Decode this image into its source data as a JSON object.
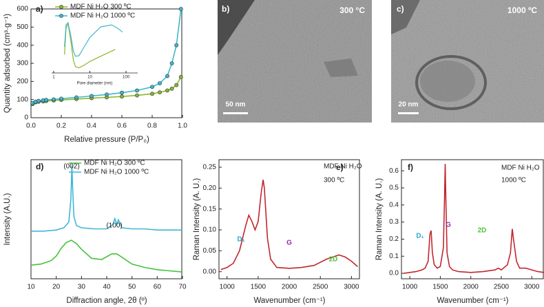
{
  "chart_data": [
    {
      "type": "line",
      "label": "a)",
      "x_label": "Relative pressure (P/P₀)",
      "y_label": "Quantity adsorbed (cm³·g⁻¹)",
      "markers": true,
      "xlim": [
        0,
        1
      ],
      "xticks": [
        {
          "value": 0,
          "label": "0.0"
        },
        0.2,
        0.4,
        0.6,
        0.8,
        {
          "value": 1,
          "label": "1.0"
        }
      ],
      "ylim": [
        0,
        600
      ],
      "yticks": [
        0,
        100,
        200,
        300,
        400,
        500,
        600
      ],
      "series": [
        {
          "name": "MDF Ni H₂O 300 ºC",
          "color": "#8db52a",
          "x": [
            0.01,
            0.03,
            0.05,
            0.08,
            0.1,
            0.15,
            0.2,
            0.3,
            0.4,
            0.5,
            0.6,
            0.7,
            0.8,
            0.85,
            0.9,
            0.93,
            0.96,
            0.99
          ],
          "values": [
            75,
            85,
            88,
            90,
            92,
            95,
            98,
            103,
            108,
            112,
            117,
            123,
            132,
            140,
            150,
            160,
            180,
            225
          ]
        },
        {
          "name": "MDF Ni H₂O 1000 ºC",
          "color": "#3fb8c9",
          "x": [
            0.01,
            0.03,
            0.05,
            0.08,
            0.1,
            0.15,
            0.2,
            0.3,
            0.4,
            0.5,
            0.6,
            0.7,
            0.8,
            0.85,
            0.9,
            0.93,
            0.96,
            0.99
          ],
          "values": [
            80,
            88,
            93,
            96,
            98,
            101,
            105,
            112,
            120,
            128,
            138,
            150,
            170,
            190,
            230,
            300,
            400,
            600
          ]
        }
      ]
    },
    {
      "type": "line",
      "x_label": "Pore diameter (nm)",
      "xscale": "log",
      "xlim": [
        0.88,
        210
      ],
      "xticks": [
        1,
        10,
        100
      ],
      "ylim": [
        0,
        1
      ],
      "series": [
        {
          "color": "#8db52a",
          "x": [
            2,
            2.2,
            2.5,
            3,
            3.5,
            4,
            5,
            7,
            10,
            20,
            50
          ],
          "values": [
            0.35,
            0.85,
            0.95,
            0.6,
            0.25,
            0.12,
            0.1,
            0.15,
            0.22,
            0.32,
            0.45
          ]
        },
        {
          "color": "#3fb8c9",
          "x": [
            2,
            2.2,
            2.5,
            3,
            3.5,
            4,
            5,
            7,
            10,
            20,
            40,
            60,
            80
          ],
          "values": [
            0.5,
            0.92,
            0.96,
            0.7,
            0.42,
            0.32,
            0.33,
            0.5,
            0.68,
            0.88,
            0.92,
            0.85,
            0.78
          ]
        }
      ]
    },
    {
      "type": "line",
      "label": "d)",
      "x_label": "Diffraction angle, 2θ (º)",
      "y_label": "Intensity (A.U.)",
      "xlim": [
        10,
        70
      ],
      "xticks": [
        10,
        20,
        30,
        40,
        50,
        60,
        70
      ],
      "ylim": [
        0,
        1.05
      ],
      "annotations": [
        "(002)",
        "(100)"
      ],
      "series": [
        {
          "name": "MDF Ni H₂O 300 ºC",
          "color": "#44c23a",
          "x": [
            10,
            14,
            18,
            20,
            22,
            24,
            26,
            28,
            30,
            34,
            38,
            42,
            44,
            46,
            50,
            55,
            60,
            65,
            70
          ],
          "values": [
            0.12,
            0.13,
            0.16,
            0.2,
            0.27,
            0.32,
            0.34,
            0.31,
            0.26,
            0.18,
            0.17,
            0.22,
            0.22,
            0.19,
            0.13,
            0.1,
            0.08,
            0.07,
            0.06
          ]
        },
        {
          "name": "MDF Ni H₂O 1000 ºC",
          "color": "#3fb6d6",
          "x": [
            10,
            15,
            20,
            23,
            25,
            25.8,
            26.2,
            26.5,
            27,
            28,
            30,
            35,
            40,
            42.5,
            43.2,
            44,
            44.6,
            46,
            50,
            55,
            60,
            65,
            70
          ],
          "values": [
            0.42,
            0.42,
            0.43,
            0.45,
            0.5,
            0.7,
            1.0,
            0.8,
            0.55,
            0.47,
            0.45,
            0.44,
            0.44,
            0.48,
            0.53,
            0.48,
            0.52,
            0.45,
            0.44,
            0.44,
            0.43,
            0.43,
            0.43
          ]
        }
      ]
    },
    {
      "type": "line",
      "label": "e)",
      "x_label": "Wavenumber (cm⁻¹)",
      "y_label": "Raman Intensity (A. U.)",
      "xlim": [
        870,
        3140
      ],
      "xticks": [
        1000,
        1500,
        2000,
        2500,
        3000
      ],
      "ylim": [
        -0.017,
        0.268
      ],
      "yticks": [
        {
          "value": 0,
          "label": "0.00"
        },
        {
          "value": 0.05,
          "label": "0.05"
        },
        {
          "value": 0.1,
          "label": "0.10"
        },
        {
          "value": 0.15,
          "label": "0.15"
        },
        {
          "value": 0.2,
          "label": "0.20"
        },
        {
          "value": 0.25,
          "label": "0.25"
        }
      ],
      "annotations": [
        "MDF Ni H₂O",
        "300 ºC",
        "D₁",
        "G",
        "2D"
      ],
      "series": [
        {
          "color": "#c0262d",
          "x": [
            900,
            1000,
            1100,
            1200,
            1300,
            1350,
            1400,
            1450,
            1500,
            1550,
            1580,
            1600,
            1650,
            1700,
            1800,
            2000,
            2200,
            2400,
            2600,
            2700,
            2800,
            2900,
            3000,
            3100
          ],
          "values": [
            0.005,
            0.01,
            0.02,
            0.05,
            0.11,
            0.135,
            0.12,
            0.1,
            0.12,
            0.19,
            0.22,
            0.2,
            0.08,
            0.03,
            0.01,
            0.008,
            0.01,
            0.015,
            0.03,
            0.035,
            0.04,
            0.035,
            0.025,
            0.012
          ]
        }
      ]
    },
    {
      "type": "line",
      "label": "f)",
      "x_label": "Wavenumber (cm⁻¹)",
      "y_label": "Raman Intensity (A. U.)",
      "xlim": [
        863,
        3200
      ],
      "xticks": [
        1000,
        1500,
        2000,
        2500,
        3000
      ],
      "ylim": [
        -0.032,
        0.665
      ],
      "yticks": [
        {
          "value": 0,
          "label": "0.0"
        },
        0.1,
        0.2,
        0.3,
        0.4,
        0.5,
        0.6
      ],
      "annotations": [
        "MDF Ni H₂O",
        "1000 ºC",
        "D₁",
        "G",
        "2D"
      ],
      "series": [
        {
          "color": "#c0262d",
          "x": [
            900,
            1000,
            1100,
            1200,
            1250,
            1300,
            1330,
            1350,
            1370,
            1400,
            1450,
            1500,
            1550,
            1570,
            1580,
            1590,
            1610,
            1650,
            1700,
            1800,
            2000,
            2200,
            2400,
            2450,
            2500,
            2600,
            2650,
            2680,
            2700,
            2750,
            2800,
            2900,
            3000,
            3100,
            3200
          ],
          "values": [
            0,
            0.005,
            0.01,
            0.02,
            0.03,
            0.07,
            0.23,
            0.25,
            0.12,
            0.05,
            0.03,
            0.04,
            0.15,
            0.45,
            0.64,
            0.45,
            0.12,
            0.04,
            0.02,
            0.01,
            0.005,
            0.01,
            0.02,
            0.03,
            0.02,
            0.05,
            0.12,
            0.26,
            0.2,
            0.07,
            0.03,
            0.03,
            0.02,
            0.01,
            0.005
          ]
        }
      ]
    }
  ],
  "images": [
    {
      "label": "b)",
      "temperature": "300 °C",
      "scale_bar": "50 nm"
    },
    {
      "label": "c)",
      "temperature": "1000 ºC",
      "scale_bar": "20 nm"
    }
  ]
}
